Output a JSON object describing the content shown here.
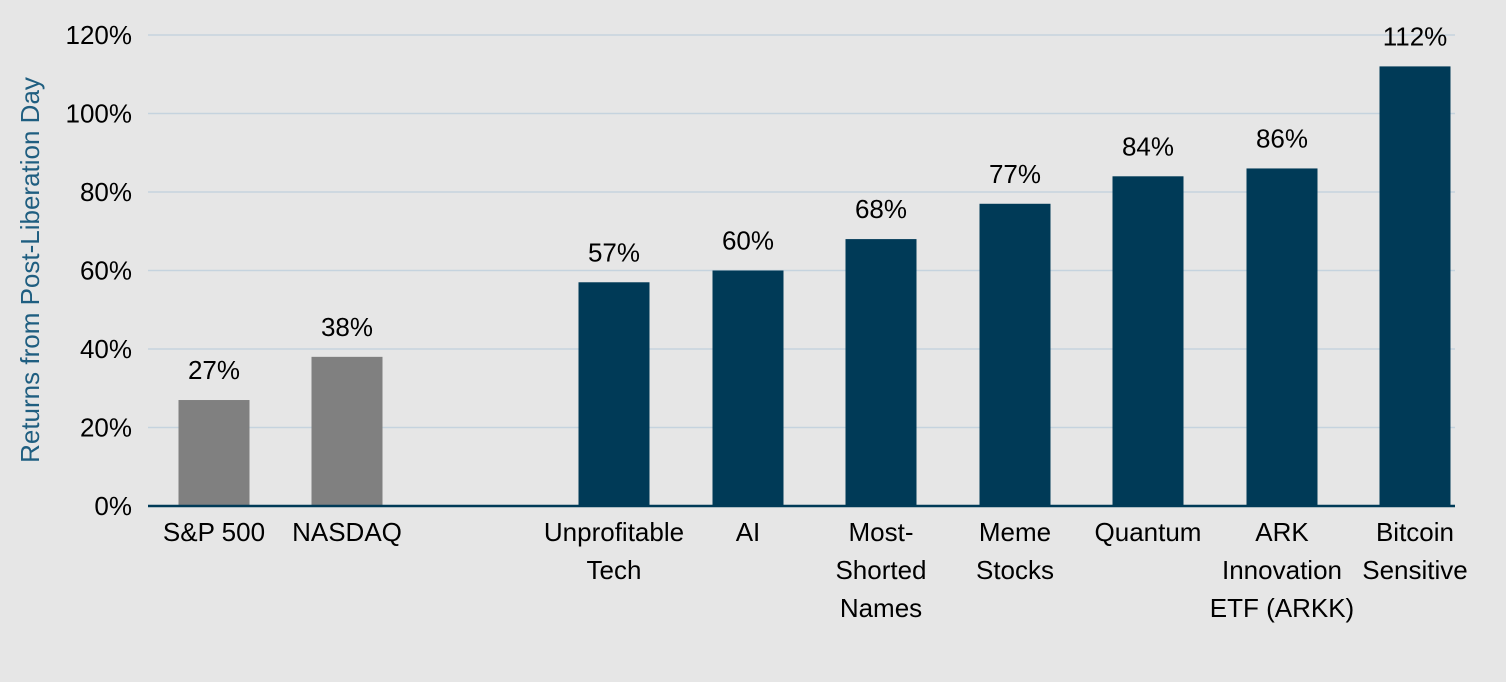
{
  "chart_data": {
    "type": "bar",
    "ylabel": "Returns from Post-Liberation Day",
    "ylim": [
      0,
      120
    ],
    "y_ticks": [
      0,
      20,
      40,
      60,
      80,
      100,
      120
    ],
    "y_tick_labels": [
      "0%",
      "20%",
      "40%",
      "60%",
      "80%",
      "100%",
      "120%"
    ],
    "grid": true,
    "categories": [
      "S&P 500",
      "NASDAQ",
      "Unprofitable Tech",
      "AI",
      "Most-Shorted Names",
      "Meme Stocks",
      "Quantum",
      "ARK Innovation ETF (ARKK)",
      "Bitcoin Sensitive"
    ],
    "category_label_lines": [
      [
        "S&P 500"
      ],
      [
        "NASDAQ"
      ],
      [
        "Unprofitable",
        "Tech"
      ],
      [
        "AI"
      ],
      [
        "Most-",
        "Shorted",
        "Names"
      ],
      [
        "Meme",
        "Stocks"
      ],
      [
        "Quantum"
      ],
      [
        "ARK",
        "Innovation",
        "ETF (ARKK)"
      ],
      [
        "Bitcoin",
        "Sensitive"
      ]
    ],
    "values": [
      27,
      38,
      57,
      60,
      68,
      77,
      84,
      86,
      112
    ],
    "value_labels": [
      "27%",
      "38%",
      "57%",
      "60%",
      "68%",
      "77%",
      "84%",
      "86%",
      "112%"
    ],
    "bar_colors": [
      "#808080",
      "#808080",
      "#003a57",
      "#003a57",
      "#003a57",
      "#003a57",
      "#003a57",
      "#003a57",
      "#003a57"
    ]
  },
  "colors": {
    "background": "#e6e6e6",
    "grid": "#c5d3de",
    "axis": "#003a57",
    "ylabel": "#1f5e80"
  }
}
